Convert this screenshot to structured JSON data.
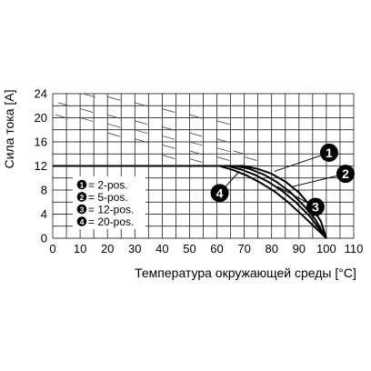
{
  "chart_data": {
    "type": "line",
    "ylabel": "Сила тока [A]",
    "xlabel": "Температура окружающей среды [°C]",
    "xlim": [
      0,
      110
    ],
    "ylim": [
      0,
      24
    ],
    "x_ticks": [
      0,
      10,
      20,
      30,
      40,
      50,
      60,
      70,
      80,
      90,
      100,
      110
    ],
    "y_ticks": [
      0,
      4,
      8,
      12,
      16,
      20,
      24
    ],
    "y_tick_labels": [
      "0",
      "4",
      "8",
      "12",
      "16",
      "20",
      "24"
    ],
    "grid": true,
    "legend_position": "lower-left",
    "series": [
      {
        "name": "2-pos.",
        "marker": "1",
        "x": [
          0,
          70,
          75,
          80,
          85,
          90,
          95,
          98,
          100
        ],
        "values": [
          12,
          12,
          11.5,
          10.7,
          9.4,
          7.6,
          4.9,
          2.8,
          0
        ]
      },
      {
        "name": "5-pos.",
        "marker": "2",
        "x": [
          0,
          67,
          72,
          77,
          82,
          87,
          92,
          96,
          100
        ],
        "values": [
          12,
          12,
          11.5,
          10.6,
          9.3,
          7.6,
          5.3,
          3.1,
          0
        ]
      },
      {
        "name": "12-pos.",
        "marker": "3",
        "x": [
          0,
          64,
          69,
          74,
          79,
          84,
          89,
          94,
          100
        ],
        "values": [
          12,
          12,
          11.4,
          10.5,
          9.3,
          7.8,
          5.9,
          3.6,
          0
        ]
      },
      {
        "name": "20-pos.",
        "marker": "4",
        "x": [
          0,
          61,
          66,
          71,
          76,
          81,
          86,
          92,
          100
        ],
        "values": [
          12,
          12,
          11.3,
          10.4,
          9.2,
          7.8,
          6.0,
          3.5,
          0
        ]
      }
    ],
    "dashed_ticks": [
      {
        "x": 11,
        "y": 24
      },
      {
        "x": 20,
        "y": 23.5
      },
      {
        "x": 30,
        "y": 22.5
      },
      {
        "x": 40,
        "y": 21.5
      },
      {
        "x": 50,
        "y": 20.5
      },
      {
        "x": 60,
        "y": 19.5
      },
      {
        "x": 2,
        "y": 22.5
      },
      {
        "x": 10,
        "y": 21.5
      },
      {
        "x": 20,
        "y": 20.5
      },
      {
        "x": 30,
        "y": 19.5
      },
      {
        "x": 40,
        "y": 18.5
      },
      {
        "x": 50,
        "y": 17.5
      },
      {
        "x": 60,
        "y": 16.5
      },
      {
        "x": 1,
        "y": 20.5
      },
      {
        "x": 10,
        "y": 20
      },
      {
        "x": 20,
        "y": 19
      },
      {
        "x": 30,
        "y": 18
      },
      {
        "x": 40,
        "y": 17
      },
      {
        "x": 50,
        "y": 16
      },
      {
        "x": 60,
        "y": 15
      },
      {
        "x": 20,
        "y": 17.5
      },
      {
        "x": 30,
        "y": 16.5
      },
      {
        "x": 40,
        "y": 15.5
      },
      {
        "x": 50,
        "y": 14.5
      },
      {
        "x": 60,
        "y": 13.5
      },
      {
        "x": 40,
        "y": 13.8
      },
      {
        "x": 50,
        "y": 13.2
      },
      {
        "x": 70,
        "y": 13.5
      },
      {
        "x": 66,
        "y": 14.5
      }
    ],
    "legend_items": [
      {
        "marker": "1",
        "text": "= 2-pos."
      },
      {
        "marker": "2",
        "text": "= 5-pos."
      },
      {
        "marker": "3",
        "text": "= 12-pos."
      },
      {
        "marker": "4",
        "text": "= 20-pos."
      }
    ],
    "callouts": [
      {
        "marker": "1",
        "at": [
          101,
          14.2
        ],
        "to": [
          81,
          11.1
        ]
      },
      {
        "marker": "2",
        "at": [
          107,
          10.7
        ],
        "to": [
          87,
          8.5
        ]
      },
      {
        "marker": "3",
        "at": [
          96,
          5.2
        ],
        "to": [
          82,
          8.6
        ]
      },
      {
        "marker": "4",
        "at": [
          61,
          7.5
        ],
        "to": [
          68,
          11.0
        ]
      }
    ],
    "colors": {
      "line": "#000000",
      "grid": "#000000",
      "dash": "#555555"
    }
  }
}
